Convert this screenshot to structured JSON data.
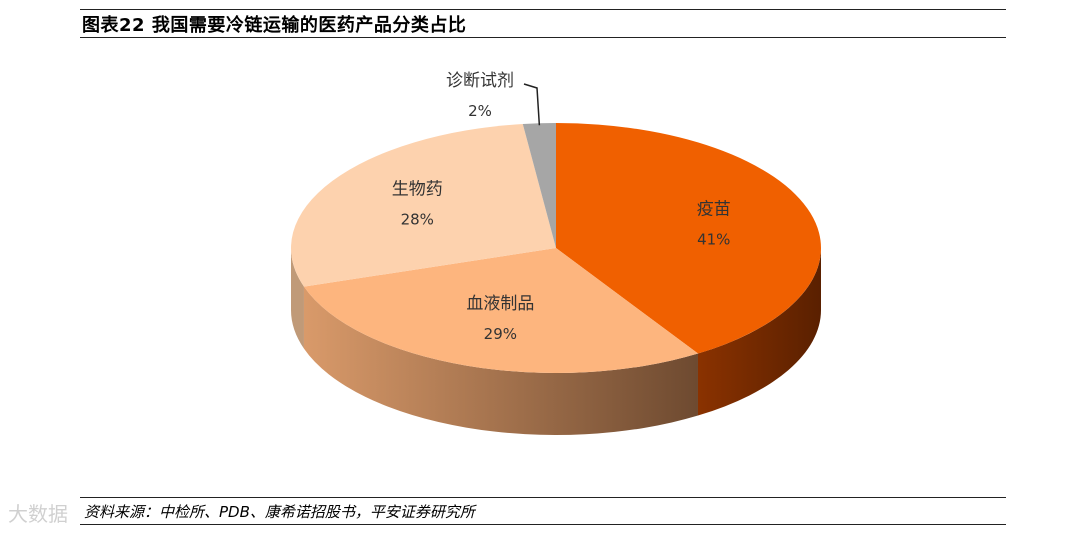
{
  "figure": {
    "title": "图表22    我国需要冷链运输的医药产品分类占比",
    "source": "资料来源：中检所、PDB、康希诺招股书，平安证券研究所",
    "watermark": "大数据"
  },
  "chart_data": {
    "type": "pie",
    "style": "3d",
    "legend": "none",
    "slices": [
      {
        "label": "疫苗",
        "value": 41,
        "pct_label": "41%",
        "color": "#F06000",
        "side_color": "#A83E00"
      },
      {
        "label": "血液制品",
        "value": 29,
        "pct_label": "29%",
        "color": "#FDB57E",
        "side_color": "#B07850"
      },
      {
        "label": "生物药",
        "value": 28,
        "pct_label": "28%",
        "color": "#FDD2AE",
        "side_color": "#C09A78"
      },
      {
        "label": "诊断试剂",
        "value": 2,
        "pct_label": "2%",
        "color": "#A6A6A6",
        "side_color": "#7A7A7A"
      }
    ]
  }
}
